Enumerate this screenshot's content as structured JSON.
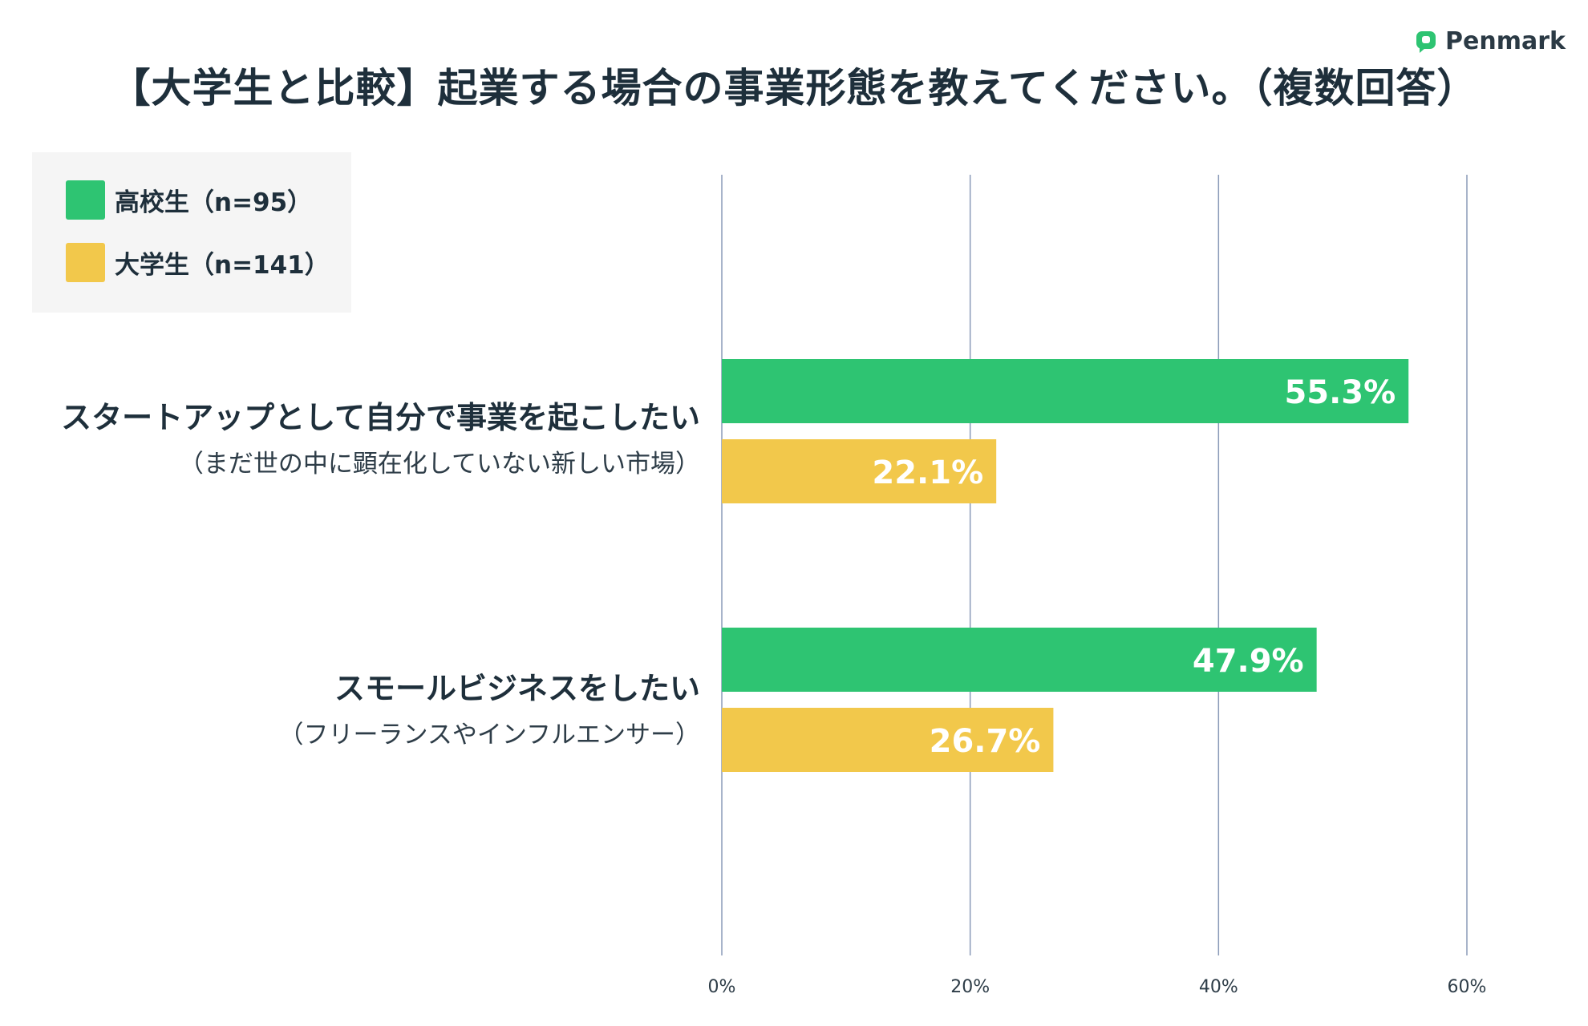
{
  "brand": {
    "name": "Penmark",
    "color": "#2ec472"
  },
  "title": "【大学生と比較】起業する場合の事業形態を教えてください。（複数回答）",
  "legend": [
    {
      "label": "高校生（n=95）",
      "color": "#2ec472"
    },
    {
      "label": "大学生（n=141）",
      "color": "#f2c84b"
    }
  ],
  "categories": [
    {
      "label": "スタートアップとして自分で事業を起こしたい",
      "sub": "（まだ世の中に顕在化していない新しい市場）"
    },
    {
      "label": "スモールビジネスをしたい",
      "sub": "（フリーランスやインフルエンサー）"
    }
  ],
  "chart_data": {
    "type": "bar",
    "orientation": "horizontal",
    "title": "【大学生と比較】起業する場合の事業形態を教えてください。（複数回答）",
    "categories": [
      "スタートアップとして自分で事業を起こしたい",
      "スモールビジネスをしたい"
    ],
    "series": [
      {
        "name": "高校生（n=95）",
        "color": "#2ec472",
        "values": [
          55.3,
          47.9
        ],
        "labels": [
          "55.3%",
          "47.9%"
        ]
      },
      {
        "name": "大学生（n=141）",
        "color": "#f2c84b",
        "values": [
          22.1,
          26.7
        ],
        "labels": [
          "22.1%",
          "26.7%"
        ]
      }
    ],
    "xlim": [
      0,
      60
    ],
    "ticks": [
      0,
      20,
      40,
      60
    ],
    "tick_labels": [
      "0%",
      "20%",
      "40%",
      "60%"
    ],
    "grid": true,
    "legend_position": "top-left"
  }
}
